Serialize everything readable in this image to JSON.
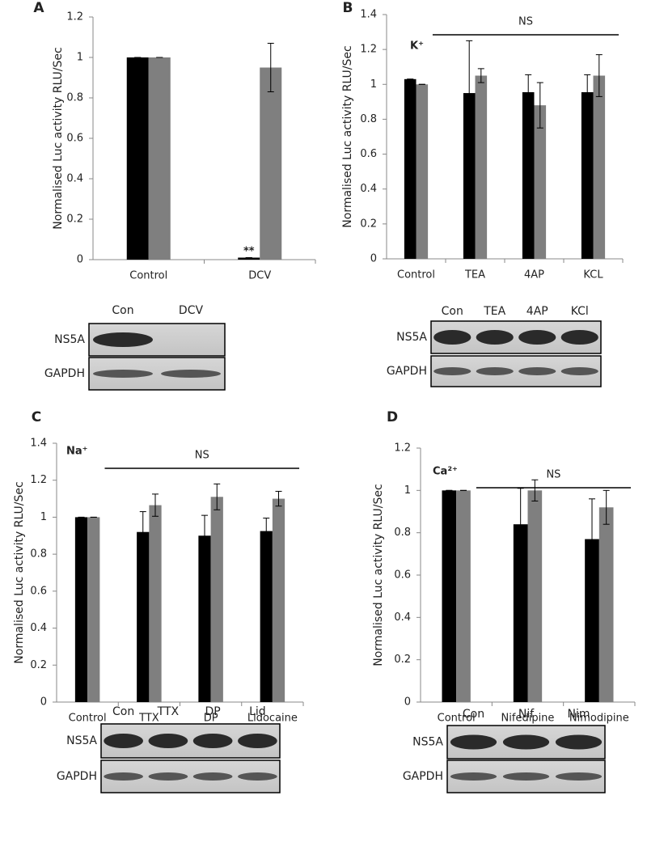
{
  "chart_data": [
    {
      "type": "bar",
      "panel": "A",
      "y_label": "Normalised Luc activity RLU/Sec",
      "categories": [
        "Control",
        "DCV"
      ],
      "series": [
        {
          "color": "#000000",
          "values": [
            1,
            0.01
          ],
          "errors": [
            0,
            0
          ]
        },
        {
          "color": "#7f7f7f",
          "values": [
            1,
            0.95
          ],
          "errors": [
            0,
            0.12
          ]
        }
      ],
      "annotations": [
        {
          "text": "**",
          "category": 1
        }
      ],
      "ylim": [
        0,
        1.2
      ],
      "yticks": [
        0,
        0.2,
        0.4,
        0.6,
        0.8,
        1,
        1.2
      ],
      "blot": {
        "lanes": [
          "Con",
          "DCV"
        ],
        "rows": [
          "NS5A",
          "GAPDH"
        ]
      }
    },
    {
      "type": "bar",
      "panel": "B",
      "y_label": "Normalised Luc activity RLU/Sec",
      "ion": "K⁺",
      "significance": "NS",
      "categories": [
        "Control",
        "TEA",
        "4AP",
        "KCL"
      ],
      "series": [
        {
          "color": "#000000",
          "values": [
            1.03,
            0.95,
            0.955,
            0.955
          ],
          "errors": [
            0,
            0.3,
            0.1,
            0.1
          ]
        },
        {
          "color": "#7f7f7f",
          "values": [
            1.0,
            1.05,
            0.88,
            1.05
          ],
          "errors": [
            0,
            0.04,
            0.13,
            0.12
          ]
        }
      ],
      "ylim": [
        0,
        1.4
      ],
      "yticks": [
        0,
        0.2,
        0.4,
        0.6,
        0.8,
        1,
        1.2,
        1.4
      ],
      "blot": {
        "lanes": [
          "Con",
          "TEA",
          "4AP",
          "KCl"
        ],
        "rows": [
          "NS5A",
          "GAPDH"
        ]
      }
    },
    {
      "type": "bar",
      "panel": "C",
      "y_label": "Normalised Luc activity RLU/Sec",
      "ion": "Na⁺",
      "significance": "NS",
      "categories": [
        "Control",
        "TTX",
        "DP",
        "Lidocaine"
      ],
      "series": [
        {
          "color": "#000000",
          "values": [
            1.0,
            0.92,
            0.9,
            0.925
          ],
          "errors": [
            0,
            0.11,
            0.11,
            0.07
          ]
        },
        {
          "color": "#7f7f7f",
          "values": [
            1.0,
            1.065,
            1.11,
            1.1
          ],
          "errors": [
            0,
            0.06,
            0.07,
            0.04
          ]
        }
      ],
      "ylim": [
        0,
        1.4
      ],
      "yticks": [
        0,
        0.2,
        0.4,
        0.6,
        0.8,
        1,
        1.2,
        1.4
      ],
      "blot": {
        "lanes": [
          "Con",
          "TTX",
          "DP",
          "Lid"
        ],
        "rows": [
          "NS5A",
          "GAPDH"
        ]
      }
    },
    {
      "type": "bar",
      "panel": "D",
      "y_label": "Normalised Luc activity RLU/Sec",
      "ion": "Ca²⁺",
      "significance": "NS",
      "categories": [
        "Control",
        "Nifedipine",
        "Nimodipine"
      ],
      "series": [
        {
          "color": "#000000",
          "values": [
            1,
            0.84,
            0.77
          ],
          "errors": [
            0,
            0.17,
            0.19
          ]
        },
        {
          "color": "#7f7f7f",
          "values": [
            1,
            1.0,
            0.92
          ],
          "errors": [
            0,
            0.05,
            0.08
          ]
        }
      ],
      "ylim": [
        0,
        1.2
      ],
      "yticks": [
        0,
        0.2,
        0.4,
        0.6,
        0.8,
        1,
        1.2
      ],
      "blot": {
        "lanes": [
          "Con",
          "Nif",
          "Nim"
        ],
        "rows": [
          "NS5A",
          "GAPDH"
        ]
      }
    }
  ]
}
